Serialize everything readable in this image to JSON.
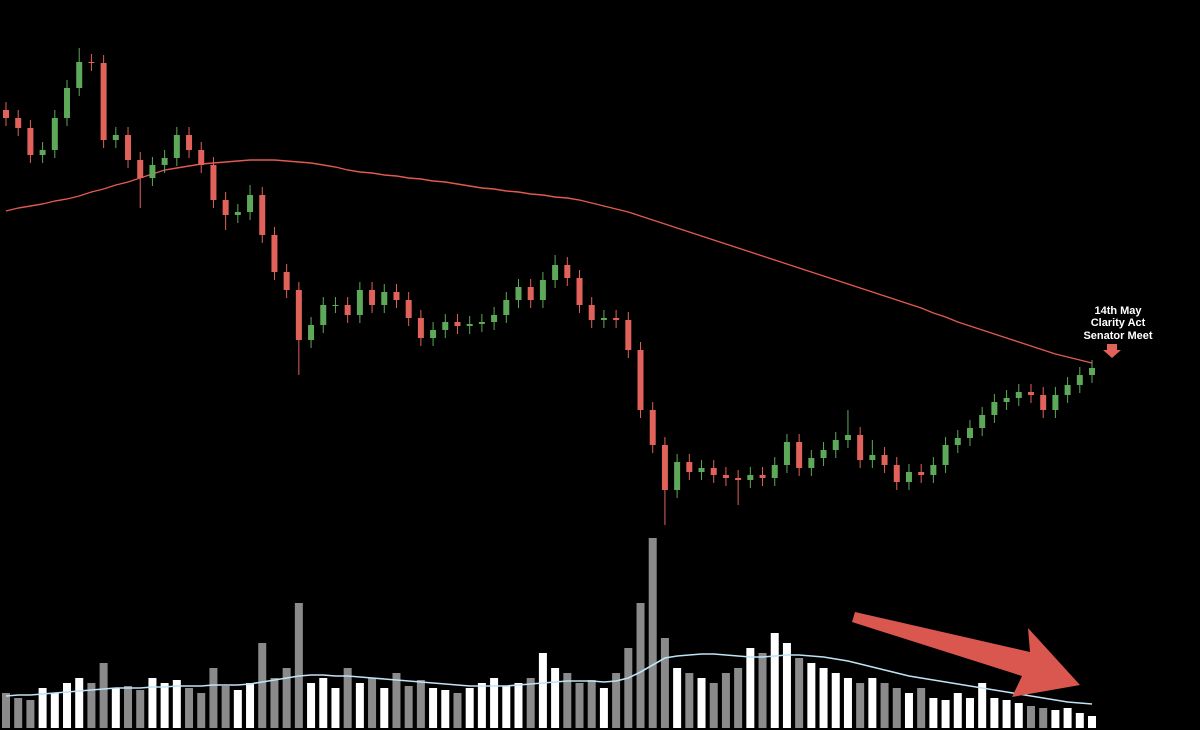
{
  "chart_data": {
    "type": "candlestick",
    "ylim": [
      0,
      730
    ],
    "up_color": "#5ea85a",
    "down_color": "#e0625a",
    "open": [
      620,
      612,
      602,
      575,
      580,
      612,
      642,
      668,
      667,
      590,
      595,
      570,
      552,
      565,
      572,
      595,
      580,
      565,
      530,
      515,
      518,
      535,
      495,
      458,
      440,
      390,
      405,
      425,
      425,
      415,
      440,
      425,
      438,
      430,
      412,
      392,
      400,
      408,
      404,
      406,
      408,
      415,
      430,
      443,
      430,
      450,
      465,
      452,
      425,
      410,
      412,
      410,
      380,
      320,
      285,
      240,
      268,
      258,
      262,
      255,
      252,
      250,
      255,
      252,
      265,
      288,
      262,
      272,
      280,
      290,
      295,
      270,
      275,
      265,
      248,
      258,
      255,
      265,
      285,
      292,
      302,
      315,
      328,
      332,
      338,
      335,
      320,
      335,
      345,
      355
    ],
    "high": [
      628,
      620,
      610,
      588,
      620,
      650,
      682,
      676,
      675,
      603,
      603,
      578,
      573,
      580,
      603,
      603,
      588,
      573,
      538,
      526,
      545,
      543,
      503,
      466,
      448,
      413,
      433,
      433,
      433,
      448,
      448,
      446,
      446,
      438,
      420,
      408,
      416,
      416,
      414,
      416,
      423,
      438,
      451,
      451,
      458,
      475,
      473,
      460,
      433,
      420,
      420,
      418,
      388,
      328,
      293,
      276,
      276,
      270,
      270,
      263,
      260,
      263,
      263,
      273,
      296,
      296,
      280,
      288,
      298,
      320,
      303,
      290,
      283,
      273,
      266,
      266,
      273,
      293,
      300,
      310,
      323,
      336,
      340,
      346,
      346,
      343,
      343,
      353,
      363,
      370
    ],
    "low": [
      604,
      594,
      567,
      567,
      572,
      604,
      634,
      659,
      582,
      582,
      562,
      522,
      544,
      557,
      564,
      572,
      557,
      522,
      500,
      507,
      510,
      487,
      450,
      432,
      355,
      382,
      397,
      417,
      407,
      407,
      417,
      417,
      422,
      404,
      384,
      384,
      392,
      396,
      396,
      398,
      400,
      407,
      422,
      422,
      422,
      442,
      444,
      417,
      402,
      402,
      402,
      372,
      312,
      277,
      205,
      232,
      250,
      250,
      247,
      244,
      225,
      242,
      244,
      244,
      257,
      254,
      254,
      264,
      272,
      282,
      262,
      262,
      257,
      240,
      240,
      247,
      247,
      257,
      277,
      284,
      294,
      307,
      320,
      324,
      327,
      312,
      312,
      327,
      337,
      347
    ],
    "close": [
      612,
      602,
      575,
      580,
      612,
      642,
      668,
      667,
      590,
      595,
      570,
      552,
      565,
      572,
      595,
      580,
      565,
      530,
      515,
      518,
      535,
      495,
      458,
      440,
      390,
      405,
      425,
      425,
      415,
      440,
      425,
      438,
      430,
      412,
      392,
      400,
      408,
      404,
      406,
      408,
      415,
      430,
      443,
      430,
      450,
      465,
      452,
      425,
      410,
      412,
      410,
      380,
      320,
      285,
      240,
      268,
      258,
      262,
      255,
      252,
      250,
      255,
      252,
      265,
      288,
      262,
      272,
      280,
      290,
      295,
      270,
      275,
      265,
      248,
      258,
      255,
      265,
      285,
      292,
      302,
      315,
      328,
      332,
      338,
      335,
      320,
      335,
      345,
      355,
      362
    ],
    "ma": {
      "color": "#e05a4e",
      "values": [
        519,
        522,
        524,
        526,
        529,
        531,
        534,
        538,
        541,
        545,
        548,
        552,
        556,
        560,
        562,
        564,
        566,
        567,
        568,
        569,
        570,
        570,
        570,
        569,
        568,
        567,
        565,
        563,
        560,
        558,
        557,
        555,
        554,
        552,
        551,
        549,
        548,
        546,
        544,
        542,
        541,
        539,
        538,
        536,
        535,
        533,
        532,
        530,
        527,
        524,
        521,
        518,
        514,
        510,
        506,
        502,
        498,
        494,
        490,
        486,
        482,
        478,
        474,
        470,
        466,
        462,
        458,
        454,
        450,
        446,
        442,
        438,
        434,
        430,
        426,
        422,
        417,
        413,
        408,
        404,
        400,
        396,
        392,
        388,
        384,
        380,
        376,
        373,
        370,
        367
      ]
    },
    "volume": {
      "ylim": [
        0,
        200
      ],
      "up_color": "#ffffff",
      "down_color": "#8a8a8a",
      "values": [
        35,
        30,
        28,
        40,
        35,
        45,
        50,
        45,
        65,
        40,
        42,
        38,
        50,
        45,
        48,
        40,
        35,
        60,
        42,
        38,
        45,
        85,
        50,
        60,
        125,
        45,
        50,
        40,
        60,
        45,
        50,
        40,
        55,
        42,
        48,
        40,
        38,
        35,
        40,
        45,
        50,
        42,
        45,
        50,
        75,
        60,
        55,
        45,
        48,
        40,
        55,
        80,
        125,
        190,
        90,
        60,
        55,
        50,
        45,
        55,
        60,
        80,
        75,
        95,
        85,
        70,
        65,
        60,
        55,
        50,
        45,
        50,
        45,
        40,
        35,
        40,
        30,
        28,
        35,
        30,
        45,
        30,
        28,
        25,
        22,
        20,
        18,
        20,
        15,
        12
      ],
      "ma": {
        "color": "#bfe3f5",
        "values": [
          32,
          33,
          33,
          34,
          35,
          36,
          37,
          38,
          39,
          40,
          40,
          40,
          41,
          41,
          42,
          42,
          42,
          43,
          43,
          43,
          44,
          46,
          48,
          50,
          52,
          53,
          53,
          52,
          52,
          51,
          50,
          49,
          48,
          47,
          46,
          45,
          44,
          43,
          42,
          42,
          42,
          42,
          43,
          44,
          45,
          46,
          47,
          47,
          47,
          46,
          47,
          50,
          56,
          63,
          70,
          72,
          73,
          74,
          74,
          73,
          72,
          71,
          71,
          72,
          73,
          73,
          72,
          71,
          69,
          67,
          64,
          61,
          58,
          55,
          52,
          50,
          48,
          46,
          44,
          42,
          40,
          38,
          36,
          34,
          32,
          30,
          28,
          26,
          25,
          24
        ]
      }
    },
    "annotation": [
      "14th May",
      "Clarity Act",
      "Senator Meet"
    ],
    "annotation_color": "#e0625a"
  }
}
